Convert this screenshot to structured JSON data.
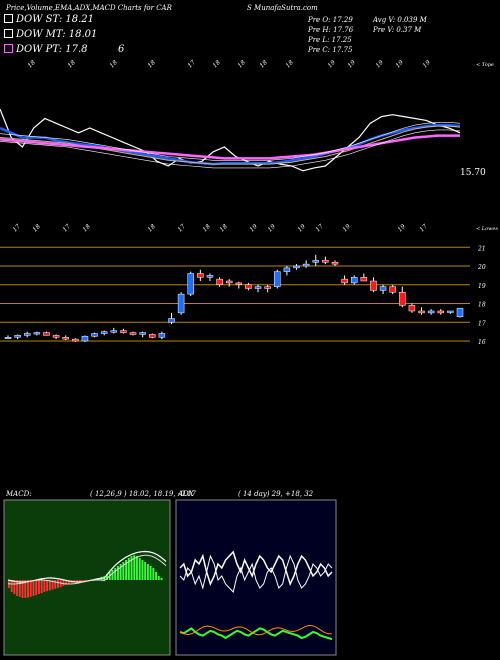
{
  "header": {
    "left": "Price,Volume,EMA,ADX,MACD Charts for CAR",
    "right": "S MunafaSutra.com"
  },
  "legend": [
    {
      "label": "DOW ST: 18.21",
      "color": "#ffffff"
    },
    {
      "label": "DOW MT: 18.01",
      "color": "#ffffff"
    },
    {
      "label": "DOW PT: 17.8",
      "color": "#ff66ff"
    }
  ],
  "legend_extra": "6",
  "ohlc": {
    "open": "Pre   O: 17.29",
    "high": "Pre   H: 17.76",
    "low": "Pre   L: 17.25",
    "close": "Pre   C: 17.75",
    "avg_vol": "Avg V: 0.039 M",
    "pre_vol": "Pre   V: 0.37 M"
  },
  "ema_panel": {
    "corner_label": "< Tope",
    "last_value": "15.70",
    "top_dates": [
      "18",
      "18",
      "18",
      "18",
      "17",
      "18",
      "18",
      "18",
      "18",
      "19",
      "19",
      "19",
      "19",
      "19"
    ],
    "bottom_dates": [
      "17",
      "18",
      "17",
      "18",
      "18",
      "17",
      "18",
      "18",
      "19",
      "19",
      "19",
      "17",
      "19",
      "19",
      "17"
    ]
  },
  "price_panel": {
    "corner_label": "< Lowes",
    "levels": [
      21,
      20,
      19,
      18,
      17,
      16
    ]
  },
  "macd_panel": {
    "title": "MACD:",
    "params": "( 12,26,9 ) 18.02,  18.19,  -0.17"
  },
  "adx_panel": {
    "title": "ADX",
    "params": "( 14  day) 29,  +18,  32"
  },
  "colors": {
    "up": "#1f6fff",
    "down": "#ff1a1a",
    "gold": "#b8860b",
    "ema_magenta": "#ff66ff",
    "ema_blue": "#1f5fff",
    "macd_bg": "#0a3d0a",
    "adx_bg": "#000022"
  },
  "chart_data": [
    {
      "type": "candlestick",
      "ylim": [
        15.2,
        21.6
      ],
      "candles": [
        [
          16.2,
          16.3,
          16.1,
          16.2
        ],
        [
          16.2,
          16.35,
          16.1,
          16.3
        ],
        [
          16.3,
          16.5,
          16.2,
          16.4
        ],
        [
          16.4,
          16.5,
          16.3,
          16.45
        ],
        [
          16.45,
          16.5,
          16.3,
          16.3
        ],
        [
          16.3,
          16.35,
          16.1,
          16.2
        ],
        [
          16.2,
          16.3,
          16.05,
          16.1
        ],
        [
          16.1,
          16.15,
          15.95,
          16.0
        ],
        [
          16.0,
          16.3,
          15.95,
          16.25
        ],
        [
          16.25,
          16.45,
          16.2,
          16.4
        ],
        [
          16.4,
          16.55,
          16.3,
          16.5
        ],
        [
          16.5,
          16.7,
          16.4,
          16.55
        ],
        [
          16.55,
          16.65,
          16.4,
          16.45
        ],
        [
          16.45,
          16.5,
          16.3,
          16.35
        ],
        [
          16.35,
          16.5,
          16.2,
          16.45
        ],
        [
          16.35,
          16.4,
          16.15,
          16.2
        ],
        [
          16.2,
          16.5,
          16.1,
          16.4
        ],
        [
          17.0,
          17.5,
          16.9,
          17.2
        ],
        [
          17.5,
          18.6,
          17.4,
          18.5
        ],
        [
          18.5,
          19.7,
          18.4,
          19.6
        ],
        [
          19.6,
          19.8,
          19.2,
          19.4
        ],
        [
          19.4,
          19.6,
          19.2,
          19.5
        ],
        [
          19.3,
          19.4,
          18.9,
          19.0
        ],
        [
          19.2,
          19.3,
          18.9,
          19.1
        ],
        [
          19.1,
          19.15,
          18.8,
          19.05
        ],
        [
          19.0,
          19.1,
          18.7,
          18.8
        ],
        [
          18.8,
          19.0,
          18.6,
          18.9
        ],
        [
          18.9,
          19.0,
          18.6,
          18.8
        ],
        [
          18.9,
          19.8,
          18.8,
          19.7
        ],
        [
          19.7,
          20.0,
          19.5,
          19.9
        ],
        [
          19.9,
          20.1,
          19.8,
          20.0
        ],
        [
          20.0,
          20.3,
          19.9,
          20.1
        ],
        [
          20.2,
          20.6,
          20.0,
          20.3
        ],
        [
          20.3,
          20.5,
          20.1,
          20.2
        ],
        [
          20.2,
          20.3,
          20.0,
          20.1
        ],
        [
          19.3,
          19.5,
          19.0,
          19.1
        ],
        [
          19.1,
          19.5,
          19.0,
          19.4
        ],
        [
          19.4,
          19.6,
          19.2,
          19.2
        ],
        [
          19.2,
          19.4,
          18.6,
          18.7
        ],
        [
          18.7,
          19.0,
          18.5,
          18.9
        ],
        [
          18.9,
          19.0,
          18.5,
          18.6
        ],
        [
          18.6,
          18.9,
          17.8,
          17.9
        ],
        [
          17.9,
          18.0,
          17.5,
          17.6
        ],
        [
          17.6,
          17.8,
          17.4,
          17.5
        ],
        [
          17.5,
          17.7,
          17.4,
          17.6
        ],
        [
          17.6,
          17.7,
          17.4,
          17.5
        ],
        [
          17.55,
          17.6,
          17.45,
          17.6
        ],
        [
          17.29,
          17.76,
          17.25,
          17.75
        ]
      ]
    },
    {
      "type": "line",
      "series": [
        {
          "values": [
            14,
            11,
            10,
            12,
            13,
            12.5,
            12,
            11.5,
            12,
            11.5,
            11,
            10.5,
            10,
            9.5,
            8.5,
            8,
            8.8,
            8.3,
            8.5,
            9.5,
            10,
            9,
            8.5,
            8,
            8.5,
            8.2,
            8,
            7.5,
            7.8,
            8,
            9,
            10,
            11,
            12.5,
            13.2,
            13.4,
            13.2,
            13,
            12.8,
            12.3,
            12,
            11.5
          ]
        },
        {
          "values": [
            12,
            11.5,
            11,
            11,
            11,
            10.7,
            10.5,
            10.3,
            10.2,
            10,
            9.8,
            9.6,
            9.4,
            9.2,
            9,
            8.8,
            8.6,
            8.4,
            8.3,
            8.2,
            8.3,
            8.3,
            8.3,
            8.3,
            8.3,
            8.4,
            8.6,
            8.8,
            9,
            9.3,
            9.6,
            9.9,
            10.3,
            10.8,
            11.2,
            11.5,
            11.8,
            12,
            12.2,
            12.3,
            12.3,
            12.2
          ]
        },
        {
          "values": [
            11,
            10.9,
            10.8,
            10.7,
            10.6,
            10.5,
            10.4,
            10.2,
            10,
            9.8,
            9.6,
            9.4,
            9.2,
            9,
            8.8,
            8.6,
            8.5,
            8.4,
            8.3,
            8.2,
            8.2,
            8.2,
            8.2,
            8.2,
            8.2,
            8.3,
            8.4,
            8.6,
            8.8,
            9,
            9.3,
            9.6,
            10,
            10.4,
            10.8,
            11.2,
            11.6,
            11.9,
            12.1,
            12.2,
            12.2,
            12.1
          ]
        },
        {
          "values": [
            10.8,
            10.7,
            10.6,
            10.5,
            10.4,
            10.3,
            10.2,
            10.1,
            10,
            9.9,
            9.8,
            9.7,
            9.6,
            9.5,
            9.4,
            9.3,
            9.2,
            9.1,
            9,
            8.9,
            8.8,
            8.8,
            8.8,
            8.8,
            8.8,
            8.9,
            9,
            9.1,
            9.2,
            9.4,
            9.6,
            9.8,
            10,
            10.2,
            10.4,
            10.6,
            10.8,
            11,
            11.1,
            11.2,
            11.2,
            11.2
          ]
        }
      ]
    },
    {
      "type": "bar",
      "values": [
        -0.2,
        -0.3,
        -0.35,
        -0.4,
        -0.42,
        -0.45,
        -0.45,
        -0.44,
        -0.42,
        -0.4,
        -0.38,
        -0.35,
        -0.33,
        -0.3,
        -0.28,
        -0.26,
        -0.24,
        -0.22,
        -0.2,
        -0.18,
        -0.15,
        -0.12,
        -0.1,
        -0.08,
        -0.06,
        -0.05,
        -0.04,
        -0.03,
        -0.03,
        -0.02,
        -0.02,
        -0.01,
        0.02,
        0.05,
        0.08,
        0.1,
        0.15,
        0.2,
        0.25,
        0.3,
        0.35,
        0.4,
        0.45,
        0.5,
        0.55,
        0.6,
        0.62,
        0.6,
        0.55,
        0.5,
        0.45,
        0.4,
        0.35,
        0.3,
        0.2,
        0.1,
        0.05,
        0
      ]
    },
    {
      "type": "line",
      "series": [
        {
          "values": [
            40,
            45,
            30,
            35,
            50,
            45,
            55,
            35,
            20,
            30,
            45,
            40,
            50,
            55,
            60,
            45,
            35,
            50,
            40,
            30,
            45,
            55,
            50,
            40,
            35,
            45,
            55,
            50,
            35,
            20,
            30,
            45,
            55,
            50,
            40,
            30,
            35,
            45,
            40,
            30,
            35
          ]
        },
        {
          "values": [
            30,
            25,
            40,
            35,
            20,
            30,
            15,
            35,
            55,
            45,
            25,
            30,
            20,
            15,
            10,
            30,
            40,
            25,
            35,
            45,
            25,
            15,
            20,
            35,
            40,
            30,
            15,
            20,
            40,
            55,
            45,
            25,
            15,
            20,
            30,
            45,
            40,
            30,
            35,
            45,
            40
          ]
        },
        {
          "values": [
            15,
            14,
            16,
            18,
            15,
            13,
            12,
            14,
            16,
            15,
            13,
            12,
            10,
            12,
            14,
            16,
            15,
            13,
            12,
            14,
            16,
            18,
            17,
            15,
            13,
            12,
            14,
            16,
            15,
            14,
            13,
            12,
            10,
            11,
            13,
            15,
            14,
            12,
            11,
            10,
            9
          ]
        }
      ]
    }
  ]
}
